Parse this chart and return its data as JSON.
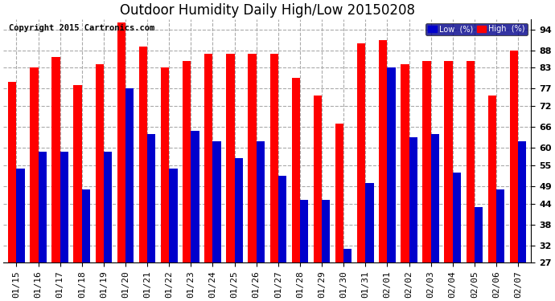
{
  "title": "Outdoor Humidity Daily High/Low 20150208",
  "copyright": "Copyright 2015 Cartronics.com",
  "dates": [
    "01/15",
    "01/16",
    "01/17",
    "01/18",
    "01/19",
    "01/20",
    "01/21",
    "01/22",
    "01/23",
    "01/24",
    "01/25",
    "01/26",
    "01/27",
    "01/28",
    "01/29",
    "01/30",
    "01/31",
    "02/01",
    "02/02",
    "02/03",
    "02/04",
    "02/05",
    "02/06",
    "02/07"
  ],
  "high": [
    79,
    83,
    86,
    78,
    84,
    96,
    89,
    83,
    85,
    87,
    87,
    87,
    87,
    80,
    75,
    67,
    90,
    91,
    84,
    85,
    85,
    85,
    75,
    88
  ],
  "low": [
    54,
    59,
    59,
    48,
    59,
    77,
    64,
    54,
    65,
    62,
    57,
    62,
    52,
    45,
    45,
    31,
    50,
    83,
    63,
    64,
    53,
    43,
    48,
    62
  ],
  "bar_width": 0.38,
  "high_color": "#ff0000",
  "low_color": "#0000cc",
  "bg_color": "#ffffff",
  "grid_color": "#aaaaaa",
  "ylim_min": 27,
  "ylim_max": 97,
  "yticks": [
    27,
    32,
    38,
    44,
    49,
    55,
    60,
    66,
    72,
    77,
    83,
    88,
    94
  ],
  "title_fontsize": 12,
  "copyright_fontsize": 7.5,
  "tick_fontsize": 8,
  "legend_low_label": "Low  (%)",
  "legend_high_label": "High  (%)"
}
